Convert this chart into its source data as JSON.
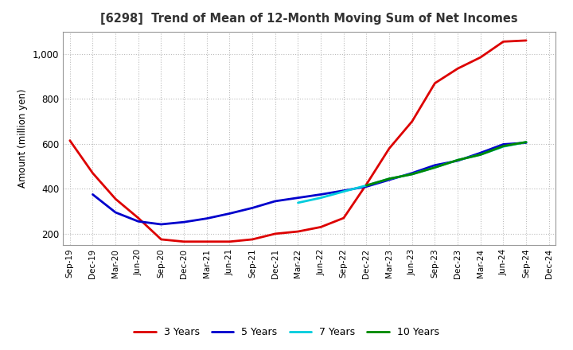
{
  "title": "[6298]  Trend of Mean of 12-Month Moving Sum of Net Incomes",
  "ylabel": "Amount (million yen)",
  "ylim": [
    150,
    1100
  ],
  "yticks": [
    200,
    400,
    600,
    800,
    1000
  ],
  "ytick_labels": [
    "200",
    "400",
    "600",
    "800",
    "1,000"
  ],
  "background_color": "#ffffff",
  "grid_color": "#bbbbbb",
  "x_labels": [
    "Sep-19",
    "Dec-19",
    "Mar-20",
    "Jun-20",
    "Sep-20",
    "Dec-20",
    "Mar-21",
    "Jun-21",
    "Sep-21",
    "Dec-21",
    "Mar-22",
    "Jun-22",
    "Sep-22",
    "Dec-22",
    "Mar-23",
    "Jun-23",
    "Sep-23",
    "Dec-23",
    "Mar-24",
    "Jun-24",
    "Sep-24",
    "Dec-24"
  ],
  "series": {
    "3 Years": {
      "color": "#dd0000",
      "linewidth": 2.0,
      "data_x": [
        0,
        1,
        2,
        3,
        4,
        5,
        6,
        7,
        8,
        9,
        10,
        11,
        12,
        13,
        14,
        15,
        16,
        17,
        18,
        19,
        20
      ],
      "data_y": [
        615,
        470,
        355,
        270,
        175,
        165,
        165,
        165,
        175,
        200,
        210,
        230,
        270,
        420,
        580,
        700,
        870,
        935,
        985,
        1055,
        1060
      ]
    },
    "5 Years": {
      "color": "#0000cc",
      "linewidth": 2.0,
      "data_x": [
        1,
        2,
        3,
        4,
        5,
        6,
        7,
        8,
        9,
        10,
        11,
        12,
        13,
        14,
        15,
        16,
        17,
        18,
        19,
        20
      ],
      "data_y": [
        375,
        295,
        255,
        242,
        252,
        268,
        290,
        315,
        345,
        360,
        375,
        392,
        410,
        440,
        470,
        505,
        525,
        560,
        598,
        605
      ]
    },
    "7 Years": {
      "color": "#00ccdd",
      "linewidth": 2.0,
      "data_x": [
        10,
        11,
        12,
        13,
        14,
        15,
        16,
        17,
        18,
        19,
        20
      ],
      "data_y": [
        338,
        360,
        388,
        415,
        445,
        465,
        495,
        528,
        552,
        588,
        608
      ]
    },
    "10 Years": {
      "color": "#008800",
      "linewidth": 2.0,
      "data_x": [
        13,
        14,
        15,
        16,
        17,
        18,
        19,
        20
      ],
      "data_y": [
        415,
        445,
        465,
        495,
        528,
        552,
        590,
        608
      ]
    }
  },
  "legend_order": [
    "3 Years",
    "5 Years",
    "7 Years",
    "10 Years"
  ]
}
